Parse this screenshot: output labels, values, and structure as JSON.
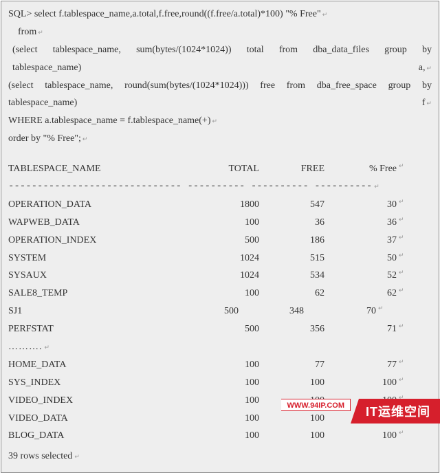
{
  "sql": {
    "l1": "SQL> select f.tablespace_name,a.total,f.free,round((f.free/a.total)*100) \"% Free\"",
    "l2": "from",
    "l3": "(select   tablespace_name,   sum(bytes/(1024*1024))   total   from   dba_data_files   group   by tablespace_name) a,",
    "l4": "(select  tablespace_name,  round(sum(bytes/(1024*1024)))  free  from  dba_free_space  group  by tablespace_name) f",
    "l5": "WHERE a.tablespace_name = f.tablespace_name(+)",
    "l6": "order by \"% Free\";"
  },
  "headers": {
    "name": "TABLESPACE_NAME",
    "total": "TOTAL",
    "free": "FREE",
    "pct": "% Free"
  },
  "sep": "------------------------------ ---------- ---------- ----------",
  "rows": [
    {
      "name": "OPERATION_DATA",
      "total": "1800",
      "free": "547",
      "pct": "30",
      "offset": false
    },
    {
      "name": "WAPWEB_DATA",
      "total": "100",
      "free": "36",
      "pct": "36",
      "offset": false
    },
    {
      "name": "OPERATION_INDEX",
      "total": "500",
      "free": "186",
      "pct": "37",
      "offset": false
    },
    {
      "name": "SYSTEM",
      "total": "1024",
      "free": "515",
      "pct": "50",
      "offset": false
    },
    {
      "name": "SYSAUX",
      "total": "1024",
      "free": "534",
      "pct": "52",
      "offset": false
    },
    {
      "name": "SALE8_TEMP",
      "total": "100",
      "free": "62",
      "pct": "62",
      "offset": false
    },
    {
      "name": "SJ1",
      "total": "500",
      "free": "348",
      "pct": "70",
      "offset": true
    },
    {
      "name": "PERFSTAT",
      "total": "500",
      "free": "356",
      "pct": "71",
      "offset": false
    }
  ],
  "ellipsis": "……….",
  "rows2": [
    {
      "name": "HOME_DATA",
      "total": "100",
      "free": "77",
      "pct": "77",
      "offset": false
    },
    {
      "name": "SYS_INDEX",
      "total": "100",
      "free": "100",
      "pct": "100",
      "offset": false
    },
    {
      "name": "VIDEO_INDEX",
      "total": "100",
      "free": "100",
      "pct": "100",
      "offset": false
    },
    {
      "name": "VIDEO_DATA",
      "total": "100",
      "free": "100",
      "pct": "100",
      "offset": false
    },
    {
      "name": "BLOG_DATA",
      "total": "100",
      "free": "100",
      "pct": "100",
      "offset": false
    }
  ],
  "summary": "39 rows selected",
  "badge": {
    "text": "IT运维空间",
    "url": "WWW.94IP.COM"
  },
  "colors": {
    "bg": "#eeeeee",
    "border": "#888888",
    "text": "#333333",
    "badge_bg": "#d61f2c",
    "badge_fg": "#ffffff"
  }
}
